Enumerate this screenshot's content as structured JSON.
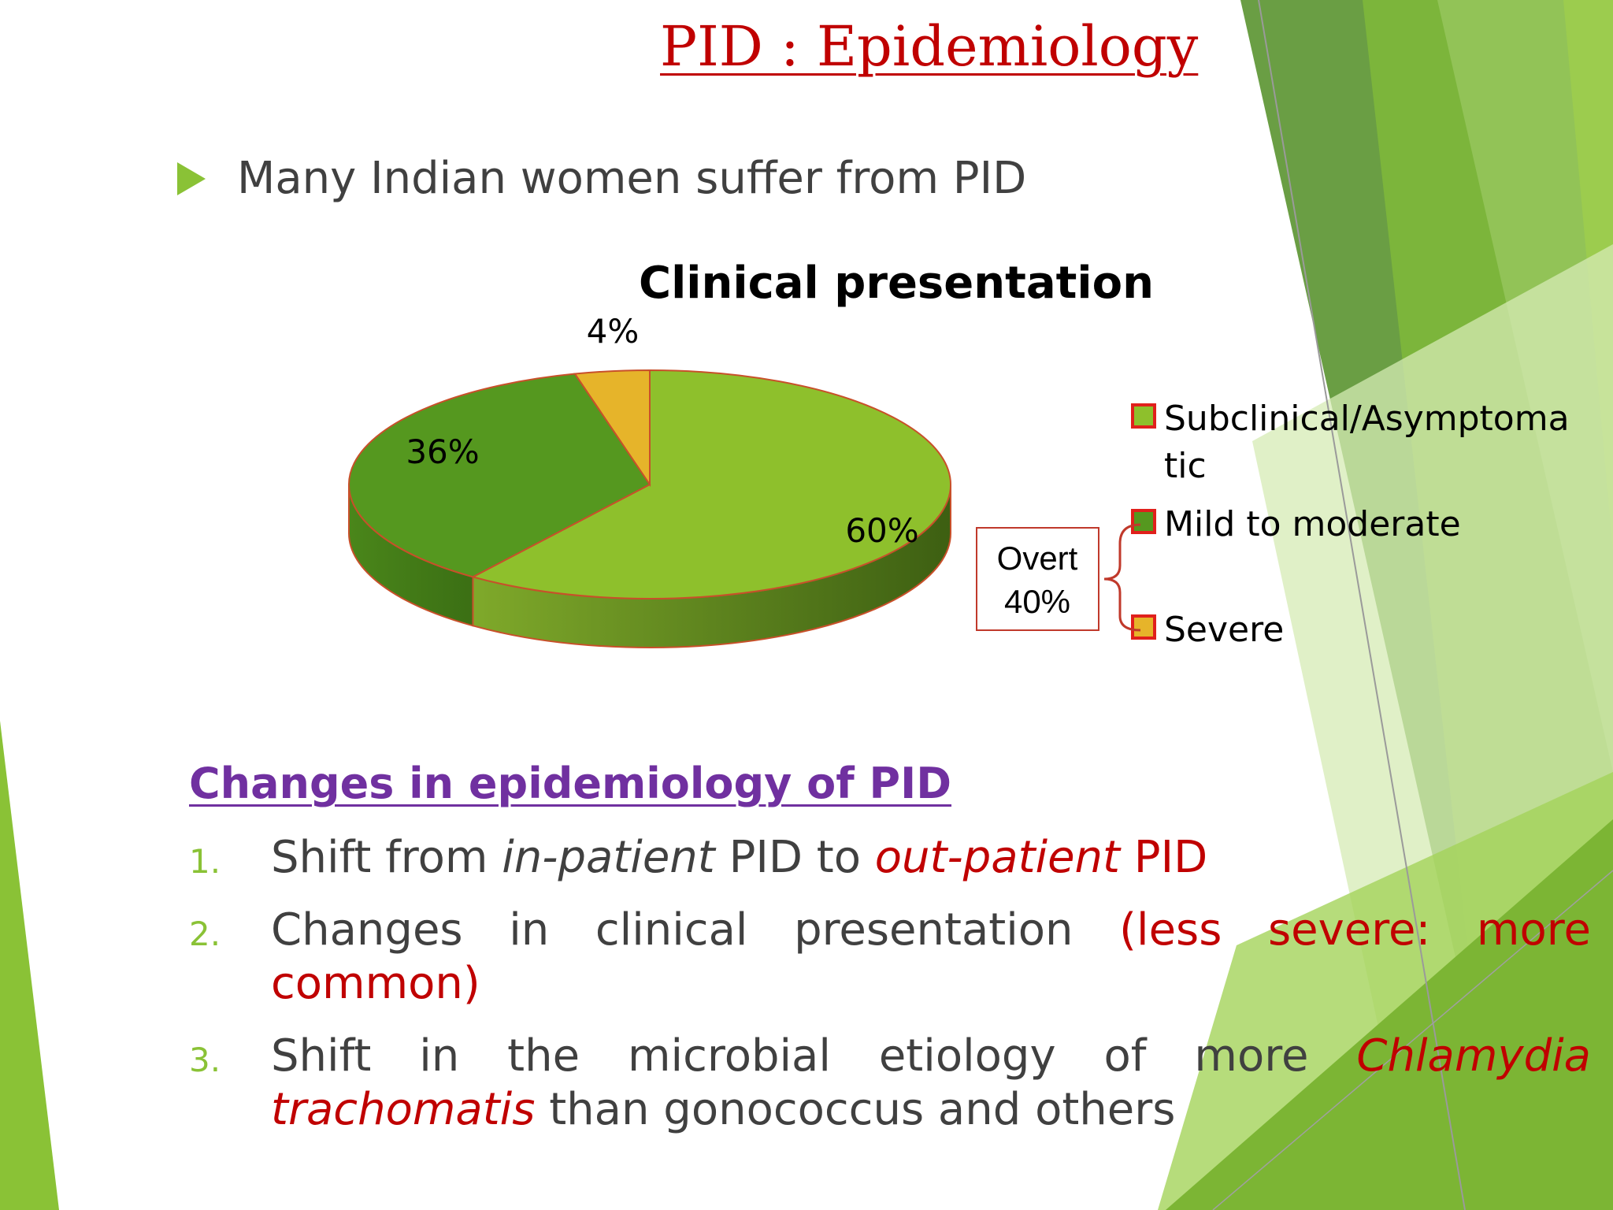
{
  "slide": {
    "title": "PID : Epidemiology",
    "bullet": "Many Indian women suffer from PID"
  },
  "chart_data": {
    "type": "pie",
    "title": "Clinical presentation",
    "three_d": true,
    "categories": [
      "Subclinical/Asymptomatic",
      "Mild to moderate",
      "Severe"
    ],
    "values": [
      60,
      36,
      4
    ],
    "labels": [
      "60%",
      "36%",
      "4%"
    ],
    "legend": {
      "position": "right",
      "entries": [
        {
          "lines": [
            "Subclinical/Asymptoma",
            "tic"
          ],
          "color": "#8ec02c"
        },
        {
          "lines": [
            "Mild to moderate"
          ],
          "color": "#55981f"
        },
        {
          "lines": [
            "Severe"
          ],
          "color": "#e6b42a"
        }
      ],
      "marker_border": "#e0201c"
    },
    "annotation": {
      "lines": [
        "Overt",
        "40%"
      ],
      "groups": [
        "Mild to moderate",
        "Severe"
      ]
    },
    "colors": [
      "#8ec02c",
      "#55981f",
      "#e6b42a"
    ],
    "edge_color": "#c8502a"
  },
  "section": {
    "heading": "Changes in epidemiology of PID",
    "items": [
      {
        "num": "1.",
        "segments": [
          {
            "text": "Shift from ",
            "style": "plain"
          },
          {
            "text": "in-patient",
            "style": "italic"
          },
          {
            "text": " PID to ",
            "style": "plain"
          },
          {
            "text": "out-patient",
            "style": "red-italic"
          },
          {
            "text": " PID",
            "style": "red"
          }
        ]
      },
      {
        "num": "2.",
        "segments": [
          {
            "text": "Changes in clinical presentation ",
            "style": "plain"
          },
          {
            "text": "(less severe: more common)",
            "style": "red"
          }
        ]
      },
      {
        "num": "3.",
        "segments": [
          {
            "text": "Shift in the microbial etiology of more ",
            "style": "plain"
          },
          {
            "text": "Chlamydia trachomatis",
            "style": "red-italic"
          },
          {
            "text": " than gonococcus and others",
            "style": "plain"
          }
        ]
      }
    ]
  },
  "theme": {
    "accent": "#8ac236",
    "title_color": "#c00000",
    "heading_color": "#7030a0",
    "text_color": "#404040"
  }
}
